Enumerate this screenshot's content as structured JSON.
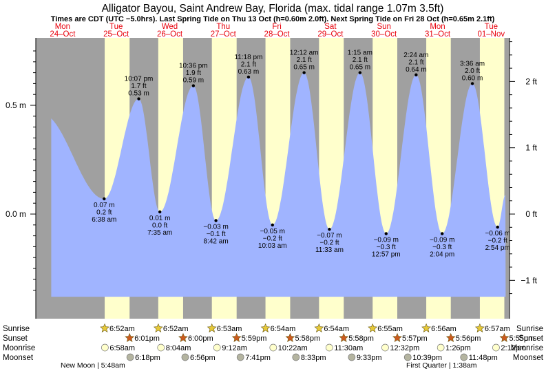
{
  "title": "Alligator Bayou, Saint Andrew Bay, Florida (max. tidal range 1.07m 3.5ft)",
  "subtitle": "Times are CDT (UTC −5.0hrs). Last Spring Tide on Thu 13 Oct (h=0.60m 2.0ft). Next Spring Tide on Fri 28 Oct (h=0.65m 2.1ft)",
  "colors": {
    "night": "#a0a0a0",
    "day": "#ffffcc",
    "water": "#a0b4ff",
    "date_red": "#e8000b",
    "sun_star": "#e6c93a",
    "sunset_star": "#cc5a1f",
    "moonrise_disc": "#ffffcc",
    "moonset_disc": "#b4b4a0"
  },
  "days": [
    {
      "dow": "Mon",
      "date": "24–Oct"
    },
    {
      "dow": "Tue",
      "date": "25–Oct"
    },
    {
      "dow": "Wed",
      "date": "26–Oct"
    },
    {
      "dow": "Thu",
      "date": "27–Oct"
    },
    {
      "dow": "Fri",
      "date": "28–Oct"
    },
    {
      "dow": "Sat",
      "date": "29–Oct"
    },
    {
      "dow": "Sun",
      "date": "30–Oct"
    },
    {
      "dow": "Mon",
      "date": "31–Oct"
    },
    {
      "dow": "Tue",
      "date": "01–Nov"
    }
  ],
  "row_labels": [
    "Sunrise",
    "Sunset",
    "Moonrise",
    "Moonset"
  ],
  "sunrise": [
    "6:52am",
    "6:52am",
    "6:53am",
    "6:54am",
    "6:54am",
    "6:55am",
    "6:56am",
    "6:57am"
  ],
  "sunset": [
    "6:01pm",
    "6:00pm",
    "5:59pm",
    "5:58pm",
    "5:58pm",
    "5:57pm",
    "5:56pm",
    "5:55pm"
  ],
  "moonrise": [
    "6:58am",
    "8:04am",
    "9:12am",
    "10:22am",
    "11:30am",
    "12:32pm",
    "1:26pm",
    "2:12pm"
  ],
  "moonset": [
    "6:18pm",
    "6:56pm",
    "7:41pm",
    "8:33pm",
    "9:33pm",
    "10:39pm",
    "11:48pm"
  ],
  "moon_phases": [
    "New Moon | 5:48am",
    "First Quarter | 1:38am"
  ],
  "left_axis": {
    "labels": [
      "0.5 m",
      "0.0 m"
    ]
  },
  "right_axis": {
    "labels": [
      "2 ft",
      "1 ft",
      "0 ft",
      "−1 ft"
    ]
  },
  "chart_data": {
    "type": "area",
    "title": "Alligator Bayou, Saint Andrew Bay, Florida (max. tidal range 1.07m 3.5ft)",
    "xlabel": "",
    "ylabel": "",
    "x_start": "2022-10-24 00:00",
    "ylim_m": [
      -0.38,
      0.82
    ],
    "grid": false,
    "extremes": [
      {
        "kind": "high",
        "time": "2022-10-24 02:48",
        "height_m": 0.46
      },
      {
        "kind": "low",
        "time": "2022-10-25 06:38",
        "height_m": 0.07,
        "label": [
          "0.07 m",
          "0.2 ft",
          "6:38 am"
        ]
      },
      {
        "kind": "high",
        "time": "2022-10-25 22:07",
        "height_m": 0.53,
        "label": [
          "10:07 pm",
          "1.7 ft",
          "0.53 m"
        ]
      },
      {
        "kind": "low",
        "time": "2022-10-26 07:35",
        "height_m": 0.01,
        "label": [
          "0.01 m",
          "0.0 ft",
          "7:35 am"
        ]
      },
      {
        "kind": "high",
        "time": "2022-10-26 22:36",
        "height_m": 0.59,
        "label": [
          "10:36 pm",
          "1.9 ft",
          "0.59 m"
        ]
      },
      {
        "kind": "low",
        "time": "2022-10-27 08:42",
        "height_m": -0.03,
        "label": [
          "−0.03 m",
          "−0.1 ft",
          "8:42 am"
        ]
      },
      {
        "kind": "high",
        "time": "2022-10-27 23:18",
        "height_m": 0.63,
        "label": [
          "11:18 pm",
          "2.1 ft",
          "0.63 m"
        ]
      },
      {
        "kind": "low",
        "time": "2022-10-28 10:03",
        "height_m": -0.05,
        "label": [
          "−0.05 m",
          "−0.2 ft",
          "10:03 am"
        ]
      },
      {
        "kind": "high",
        "time": "2022-10-29 00:12",
        "height_m": 0.65,
        "label": [
          "12:12 am",
          "2.1 ft",
          "0.65 m"
        ]
      },
      {
        "kind": "low",
        "time": "2022-10-29 11:33",
        "height_m": -0.07,
        "label": [
          "−0.07 m",
          "−0.2 ft",
          "11:33 am"
        ]
      },
      {
        "kind": "high",
        "time": "2022-10-30 01:15",
        "height_m": 0.65,
        "label": [
          "1:15 am",
          "2.1 ft",
          "0.65 m"
        ]
      },
      {
        "kind": "low",
        "time": "2022-10-30 12:57",
        "height_m": -0.09,
        "label": [
          "−0.09 m",
          "−0.3 ft",
          "12:57 pm"
        ]
      },
      {
        "kind": "high",
        "time": "2022-10-31 02:24",
        "height_m": 0.64,
        "label": [
          "2:24 am",
          "2.1 ft",
          "0.64 m"
        ]
      },
      {
        "kind": "low",
        "time": "2022-10-31 14:04",
        "height_m": -0.09,
        "label": [
          "−0.09 m",
          "−0.3 ft",
          "2:04 pm"
        ]
      },
      {
        "kind": "high",
        "time": "2022-11-01 03:36",
        "height_m": 0.6,
        "label": [
          "3:36 am",
          "2.0 ft",
          "0.60 m"
        ]
      },
      {
        "kind": "low",
        "time": "2022-11-01 14:54",
        "height_m": -0.06,
        "label": [
          "−0.06 m",
          "−0.2 ft",
          "2:54 pm"
        ]
      },
      {
        "kind": "rising",
        "time": "2022-11-01 18:30",
        "height_m": 0.09
      }
    ]
  }
}
